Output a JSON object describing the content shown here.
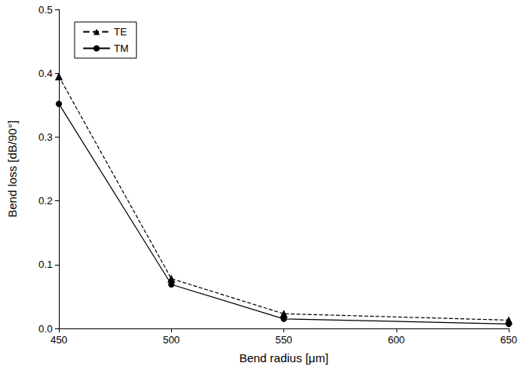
{
  "chart_data": {
    "type": "line",
    "x_label": "Bend radius [μm]",
    "y_label": "Bend loss [dB/90°]",
    "series": [
      {
        "name": "TE",
        "color": "#000000",
        "marker": "triangle",
        "line_style": "dashed",
        "x": [
          450,
          500,
          550,
          650
        ],
        "values": [
          0.395,
          0.078,
          0.023,
          0.013
        ]
      },
      {
        "name": "TM",
        "color": "#000000",
        "marker": "circle",
        "line_style": "solid",
        "x": [
          450,
          500,
          550,
          650
        ],
        "values": [
          0.352,
          0.069,
          0.015,
          0.007
        ]
      }
    ],
    "xlim": [
      450,
      650
    ],
    "xticks": [
      450,
      500,
      550,
      600,
      650
    ],
    "ylim": [
      0,
      0.5
    ],
    "yticks": [
      {
        "value": 0,
        "label": "0.0"
      },
      0.1,
      0.2,
      0.3,
      0.4,
      0.5
    ],
    "grid": false,
    "legend": "upper left"
  }
}
